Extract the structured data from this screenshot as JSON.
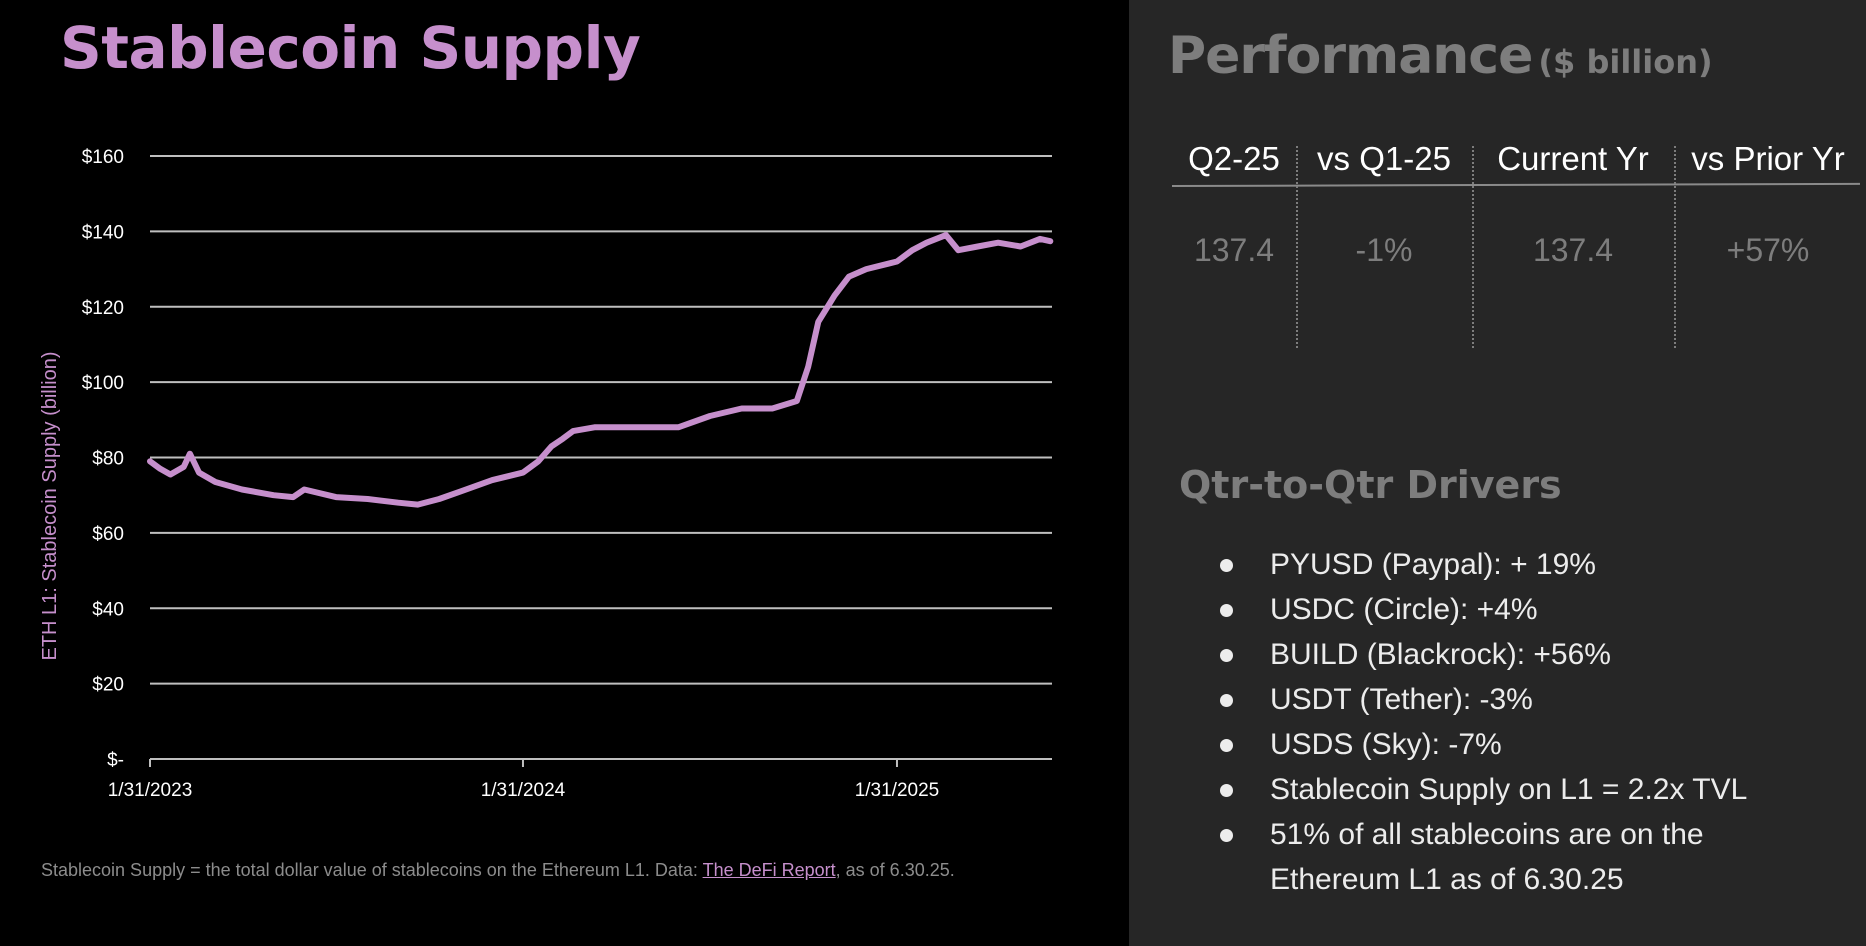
{
  "left": {
    "title": "Stablecoin Supply",
    "footnote": {
      "prefix": "Stablecoin Supply = the total dollar value of stablecoins on the Ethereum L1. Data: ",
      "link_text": "The DeFi Report",
      "suffix": ", as of 6.30.25."
    }
  },
  "right": {
    "performance": {
      "title": "Performance",
      "unit": "($ billion)",
      "headers": [
        "Q2-25",
        "vs Q1-25",
        "Current Yr",
        "vs Prior Yr"
      ],
      "values": [
        "137.4",
        "-1%",
        "137.4",
        "+57%"
      ]
    },
    "drivers": {
      "title": "Qtr-to-Qtr Drivers",
      "items": [
        "PYUSD (Paypal): + 19%",
        "USDC (Circle): +4%",
        "BUILD (Blackrock): +56%",
        "USDT (Tether): -3%",
        "USDS (Sky): -7%",
        "Stablecoin Supply on L1 = 2.2x TVL",
        "51% of all stablecoins are on the Ethereum L1 as of 6.30.25"
      ]
    }
  },
  "colors": {
    "accent": "#c68fcc",
    "left_bg": "#000000",
    "right_bg": "#262626",
    "gridline": "#bfbfbf",
    "muted_text": "#7d7d7d"
  },
  "chart_data": {
    "type": "line",
    "title": "Stablecoin Supply",
    "xlabel": "",
    "ylabel": "ETH L1: Stablecoin Supply (billion)",
    "ylim": [
      0,
      160
    ],
    "yticks": [
      0,
      20,
      40,
      60,
      80,
      100,
      120,
      140,
      160
    ],
    "ytick_labels": [
      "$-",
      "$20",
      "$40",
      "$60",
      "$80",
      "$100",
      "$120",
      "$140",
      "$160"
    ],
    "xtick_labels": [
      "1/31/2023",
      "1/31/2024",
      "1/31/2025"
    ],
    "x_range": [
      "1/31/2023",
      "6/30/2025"
    ],
    "grid": true,
    "legend": "none",
    "series": [
      {
        "name": "ETH L1 Stablecoin Supply",
        "color": "#c68fcc",
        "x": [
          "2023-01-31",
          "2023-02-10",
          "2023-02-20",
          "2023-03-05",
          "2023-03-11",
          "2023-03-20",
          "2023-04-05",
          "2023-05-01",
          "2023-06-01",
          "2023-06-20",
          "2023-07-01",
          "2023-08-01",
          "2023-09-01",
          "2023-10-01",
          "2023-10-20",
          "2023-11-10",
          "2023-12-01",
          "2024-01-01",
          "2024-01-31",
          "2024-02-15",
          "2024-02-28",
          "2024-03-10",
          "2024-03-20",
          "2024-04-10",
          "2024-05-01",
          "2024-06-01",
          "2024-07-01",
          "2024-08-01",
          "2024-09-01",
          "2024-10-01",
          "2024-10-25",
          "2024-11-05",
          "2024-11-15",
          "2024-12-01",
          "2024-12-15",
          "2025-01-01",
          "2025-01-31",
          "2025-02-15",
          "2025-03-01",
          "2025-03-20",
          "2025-04-01",
          "2025-04-20",
          "2025-05-10",
          "2025-06-01",
          "2025-06-20",
          "2025-06-30"
        ],
        "values": [
          79,
          77,
          75.5,
          77.5,
          81,
          76,
          73.5,
          71.5,
          70,
          69.5,
          71.5,
          69.5,
          69,
          68,
          67.5,
          69,
          71,
          74,
          76,
          79,
          83,
          85,
          87,
          88,
          88,
          88,
          88,
          91,
          93,
          93,
          95,
          104,
          116,
          123,
          128,
          130,
          132,
          135,
          137,
          139,
          135,
          136,
          137,
          136,
          138,
          137.4
        ]
      }
    ]
  }
}
